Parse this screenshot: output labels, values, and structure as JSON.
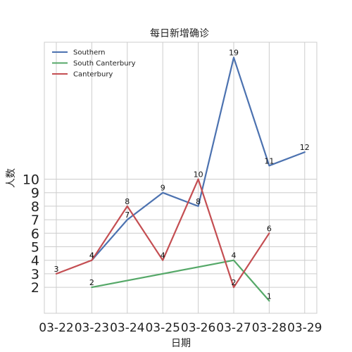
{
  "chart_data": {
    "type": "line",
    "title": "每日新增确诊",
    "xlabel": "日期",
    "ylabel": "人数",
    "x": [
      "03-22",
      "03-23",
      "03-24",
      "03-25",
      "03-26",
      "03-27",
      "03-28",
      "03-29"
    ],
    "yticks": [
      2,
      3,
      4,
      5,
      6,
      7,
      8,
      9,
      10
    ],
    "ylim": [
      0,
      20
    ],
    "grid": true,
    "legend_position": "top-left",
    "series": [
      {
        "name": "Southern",
        "color": "#4c72b0",
        "points": [
          [
            "03-23",
            4
          ],
          [
            "03-24",
            7
          ],
          [
            "03-25",
            9
          ],
          [
            "03-26",
            8
          ],
          [
            "03-27",
            19
          ],
          [
            "03-28",
            11
          ],
          [
            "03-29",
            12
          ]
        ]
      },
      {
        "name": "South Canterbury",
        "color": "#55a868",
        "points": [
          [
            "03-23",
            2
          ],
          [
            "03-27",
            4
          ],
          [
            "03-28",
            1
          ]
        ]
      },
      {
        "name": "Canterbury",
        "color": "#c44e52",
        "points": [
          [
            "03-22",
            3
          ],
          [
            "03-23",
            4
          ],
          [
            "03-24",
            8
          ],
          [
            "03-25",
            4
          ],
          [
            "03-26",
            10
          ],
          [
            "03-27",
            2
          ],
          [
            "03-28",
            6
          ]
        ]
      }
    ]
  }
}
